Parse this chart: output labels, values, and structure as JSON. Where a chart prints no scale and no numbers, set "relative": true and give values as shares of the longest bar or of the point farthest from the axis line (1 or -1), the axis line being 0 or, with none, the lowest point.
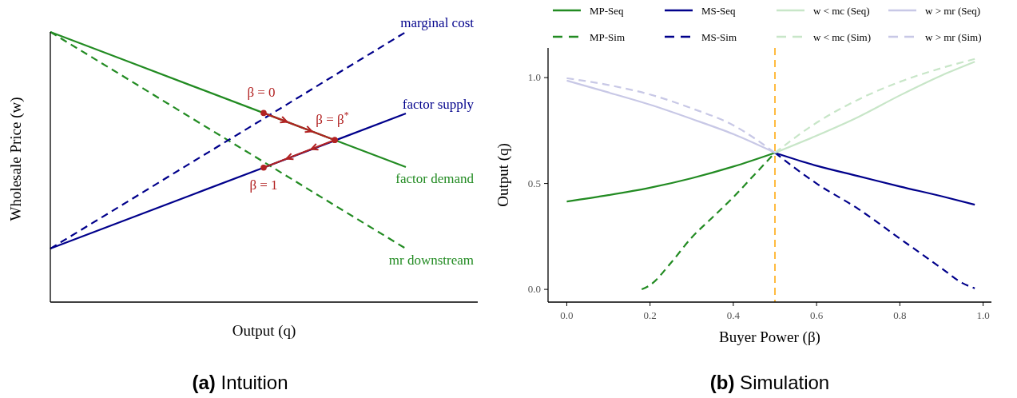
{
  "chart_data": [
    {
      "type": "line",
      "relative": true,
      "title": "(a) Intuition",
      "xlabel": "Output (q)",
      "ylabel": "Wholesale Price (w)",
      "categories": [
        null,
        null,
        null,
        null,
        null,
        null
      ],
      "series": [
        {
          "name": "factor demand",
          "color": "#228b22",
          "values": [
            1,
            0.9,
            0.8,
            0.7,
            0.6,
            0.5
          ]
        },
        {
          "name": "mr downstream",
          "color": "#228b22",
          "values": [
            1,
            0.84,
            0.679,
            0.519,
            0.358,
            0.198
          ],
          "line_style": "dashed"
        },
        {
          "name": "marginal cost",
          "color": "#00008b",
          "values": [
            0.198,
            0.358,
            0.519,
            0.679,
            0.84,
            1
          ],
          "line_style": "dashed"
        },
        {
          "name": "factor supply",
          "color": "#00008b",
          "values": [
            0.198,
            0.298,
            0.398,
            0.498,
            0.598,
            0.698
          ]
        },
        {
          "color": "#b22222",
          "values": [
            null,
            null,
            null,
            0.7,
            0.6,
            null
          ],
          "marker": "circle"
        },
        {
          "color": "#b22222",
          "values": [
            null,
            null,
            null,
            0.498,
            0.6,
            null
          ],
          "marker": "circle"
        }
      ],
      "annotations": [
        "β = 0",
        "β = β$^{*}$",
        "β = 1"
      ]
    },
    {
      "type": "line",
      "title": "(b) Simulation",
      "xlabel": "Buyer Power (β)",
      "ylabel": "Output (q)",
      "xlim": [
        -0.045,
        1.02
      ],
      "ylim": [
        -0.06,
        1.14
      ],
      "xticks": [
        {
          "value": 0,
          "label": "0.0"
        },
        0.2,
        0.4,
        0.6,
        0.8,
        {
          "value": 1,
          "label": "1.0"
        }
      ],
      "yticks": [
        {
          "value": 0,
          "label": "0.0"
        },
        0.5,
        {
          "value": 1,
          "label": "1.0"
        }
      ],
      "legend": "top",
      "ref_lines": [
        {
          "axis": "x",
          "value": 0.5,
          "color": "#ffa500",
          "line_style": "dashed"
        }
      ],
      "series": [
        {
          "name": "MP-Seq",
          "color": "#228b22",
          "x": [
            0,
            0.1,
            0.2,
            0.3,
            0.4,
            0.5
          ],
          "values": [
            0.415,
            0.445,
            0.48,
            0.525,
            0.58,
            0.645
          ]
        },
        {
          "name": "MP-Sim",
          "color": "#228b22",
          "line_style": "dashed",
          "x": [
            0.18,
            0.2,
            0.25,
            0.3,
            0.35,
            0.4,
            0.45,
            0.5
          ],
          "values": [
            0,
            0.02,
            0.125,
            0.245,
            0.34,
            0.435,
            0.54,
            0.645
          ]
        },
        {
          "name": "MS-Seq",
          "color": "#00008b",
          "x": [
            0.5,
            0.6,
            0.7,
            0.8,
            0.9,
            0.98
          ],
          "values": [
            0.645,
            0.584,
            0.535,
            0.486,
            0.44,
            0.4
          ]
        },
        {
          "name": "MS-Sim",
          "color": "#00008b",
          "line_style": "dashed",
          "x": [
            0.5,
            0.6,
            0.7,
            0.8,
            0.9,
            0.95,
            0.98
          ],
          "values": [
            0.645,
            0.5,
            0.38,
            0.24,
            0.1,
            0.03,
            0.005
          ]
        },
        {
          "name": "w < mc (Seq)",
          "color": "#c8e6c8",
          "x": [
            0.5,
            0.6,
            0.7,
            0.8,
            0.9,
            0.98
          ],
          "values": [
            0.645,
            0.726,
            0.814,
            0.916,
            1.01,
            1.075
          ]
        },
        {
          "name": "w < mc (Sim)",
          "color": "#c8e6c8",
          "line_style": "dashed",
          "x": [
            0.5,
            0.6,
            0.7,
            0.8,
            0.9,
            0.98
          ],
          "values": [
            0.645,
            0.787,
            0.896,
            0.98,
            1.045,
            1.088
          ]
        },
        {
          "name": "w > mr (Seq)",
          "color": "#c8c8e6",
          "x": [
            0,
            0.1,
            0.2,
            0.3,
            0.4,
            0.5
          ],
          "values": [
            0.986,
            0.93,
            0.872,
            0.805,
            0.733,
            0.645
          ]
        },
        {
          "name": "w > mr (Sim)",
          "color": "#c8c8e6",
          "line_style": "dashed",
          "x": [
            0,
            0.1,
            0.2,
            0.3,
            0.4,
            0.5
          ],
          "values": [
            0.997,
            0.965,
            0.92,
            0.855,
            0.775,
            0.645
          ]
        }
      ]
    }
  ]
}
